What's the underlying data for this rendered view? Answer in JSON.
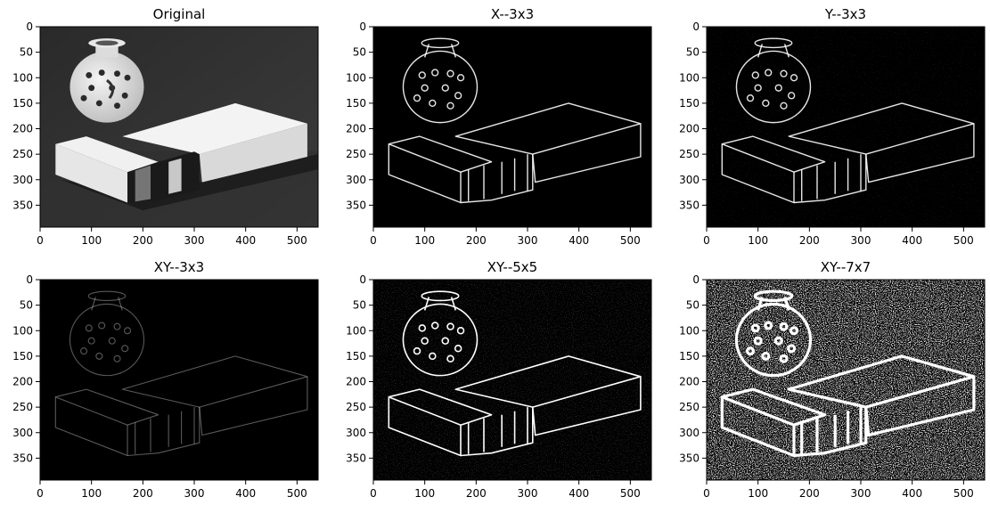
{
  "figure": {
    "panels": [
      {
        "title": "Original",
        "kind": "original"
      },
      {
        "title": "X--3x3",
        "kind": "edge_x"
      },
      {
        "title": "Y--3x3",
        "kind": "edge_y"
      },
      {
        "title": "XY--3x3",
        "kind": "edge_xy_dim"
      },
      {
        "title": "XY--5x5",
        "kind": "edge_xy"
      },
      {
        "title": "XY--7x7",
        "kind": "edge_xy_noisy"
      }
    ],
    "x_ticks": [
      "0",
      "100",
      "200",
      "300",
      "400",
      "500"
    ],
    "y_ticks": [
      "0",
      "50",
      "100",
      "150",
      "200",
      "250",
      "300",
      "350"
    ],
    "colors": {
      "background": "#ffffff",
      "axis": "#000000"
    }
  }
}
